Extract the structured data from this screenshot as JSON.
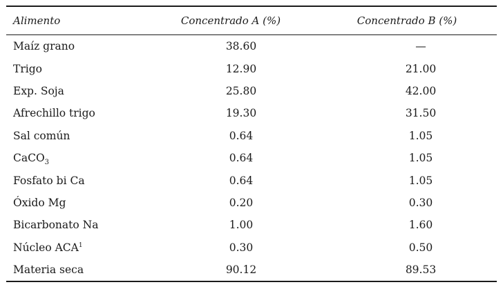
{
  "table": {
    "headers": [
      "Alimento",
      "Concentrado A (%)",
      "Concentrado B (%)"
    ],
    "rows": [
      {
        "name": "Maíz grano",
        "name_sub": "",
        "name_sup": "",
        "a": "38.60",
        "b": "—"
      },
      {
        "name": "Trigo",
        "name_sub": "",
        "name_sup": "",
        "a": "12.90",
        "b": "21.00"
      },
      {
        "name": "Exp. Soja",
        "name_sub": "",
        "name_sup": "",
        "a": "25.80",
        "b": "42.00"
      },
      {
        "name": "Afrechillo trigo",
        "name_sub": "",
        "name_sup": "",
        "a": "19.30",
        "b": "31.50"
      },
      {
        "name": "Sal común",
        "name_sub": "",
        "name_sup": "",
        "a": "0.64",
        "b": "1.05"
      },
      {
        "name": "CaCO",
        "name_sub": "3",
        "name_sup": "",
        "a": "0.64",
        "b": "1.05"
      },
      {
        "name": "Fosfato bi Ca",
        "name_sub": "",
        "name_sup": "",
        "a": "0.64",
        "b": "1.05"
      },
      {
        "name": "Óxido Mg",
        "name_sub": "",
        "name_sup": "",
        "a": "0.20",
        "b": "0.30"
      },
      {
        "name": "Bicarbonato Na",
        "name_sub": "",
        "name_sup": "",
        "a": "1.00",
        "b": "1.60"
      },
      {
        "name": "Núcleo ACA",
        "name_sub": "",
        "name_sup": "1",
        "a": "0.30",
        "b": "0.50"
      },
      {
        "name": "Materia seca",
        "name_sub": "",
        "name_sup": "",
        "a": "90.12",
        "b": "89.53"
      }
    ]
  }
}
